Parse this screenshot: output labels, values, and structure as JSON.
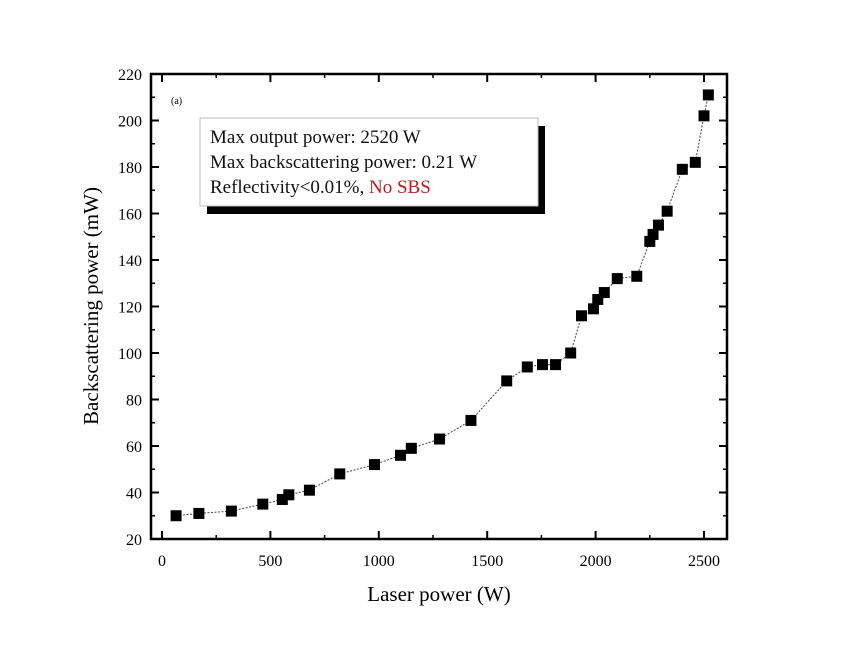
{
  "chart_data": {
    "type": "scatter",
    "title": "",
    "panel_label": "(a)",
    "xlabel": "Laser power (W)",
    "ylabel": "Backscattering power (mW)",
    "xlim": [
      -20,
      2600
    ],
    "ylim": [
      20,
      220
    ],
    "xticks": [
      0,
      500,
      1000,
      1500,
      2000,
      2500
    ],
    "xtick_labels": [
      "0",
      "500",
      "1000",
      "1500",
      "2000",
      "2500"
    ],
    "yticks": [
      20,
      40,
      60,
      80,
      100,
      120,
      140,
      160,
      180,
      200,
      220
    ],
    "ytick_labels": [
      "20",
      "40",
      "60",
      "80",
      "100",
      "120",
      "140",
      "160",
      "180",
      "200",
      "220"
    ],
    "grid": false,
    "series": [
      {
        "name": "Backscattering power",
        "marker": "square",
        "color": "#000000",
        "line": "dotted",
        "x": [
          65,
          170,
          320,
          465,
          555,
          585,
          680,
          820,
          980,
          1100,
          1150,
          1280,
          1425,
          1590,
          1685,
          1755,
          1815,
          1885,
          1935,
          1990,
          2010,
          2040,
          2100,
          2190,
          2250,
          2265,
          2290,
          2330,
          2400,
          2460,
          2500,
          2520
        ],
        "y": [
          30,
          31,
          32,
          35,
          37,
          39,
          41,
          48,
          52,
          56,
          59,
          63,
          71,
          88,
          94,
          95,
          95,
          100,
          116,
          119,
          123,
          126,
          132,
          133,
          148,
          151,
          155,
          161,
          179,
          182,
          202,
          211
        ]
      }
    ],
    "annotation": {
      "lines": [
        {
          "text": "Max output power: 2520 W"
        },
        {
          "text": "Max backscattering power: 0.21 W"
        },
        {
          "text_black": "Reflectivity<0.01%, ",
          "text_red": "No SBS"
        }
      ],
      "highlight_color": "#c0191e",
      "placement": "top-left"
    }
  }
}
